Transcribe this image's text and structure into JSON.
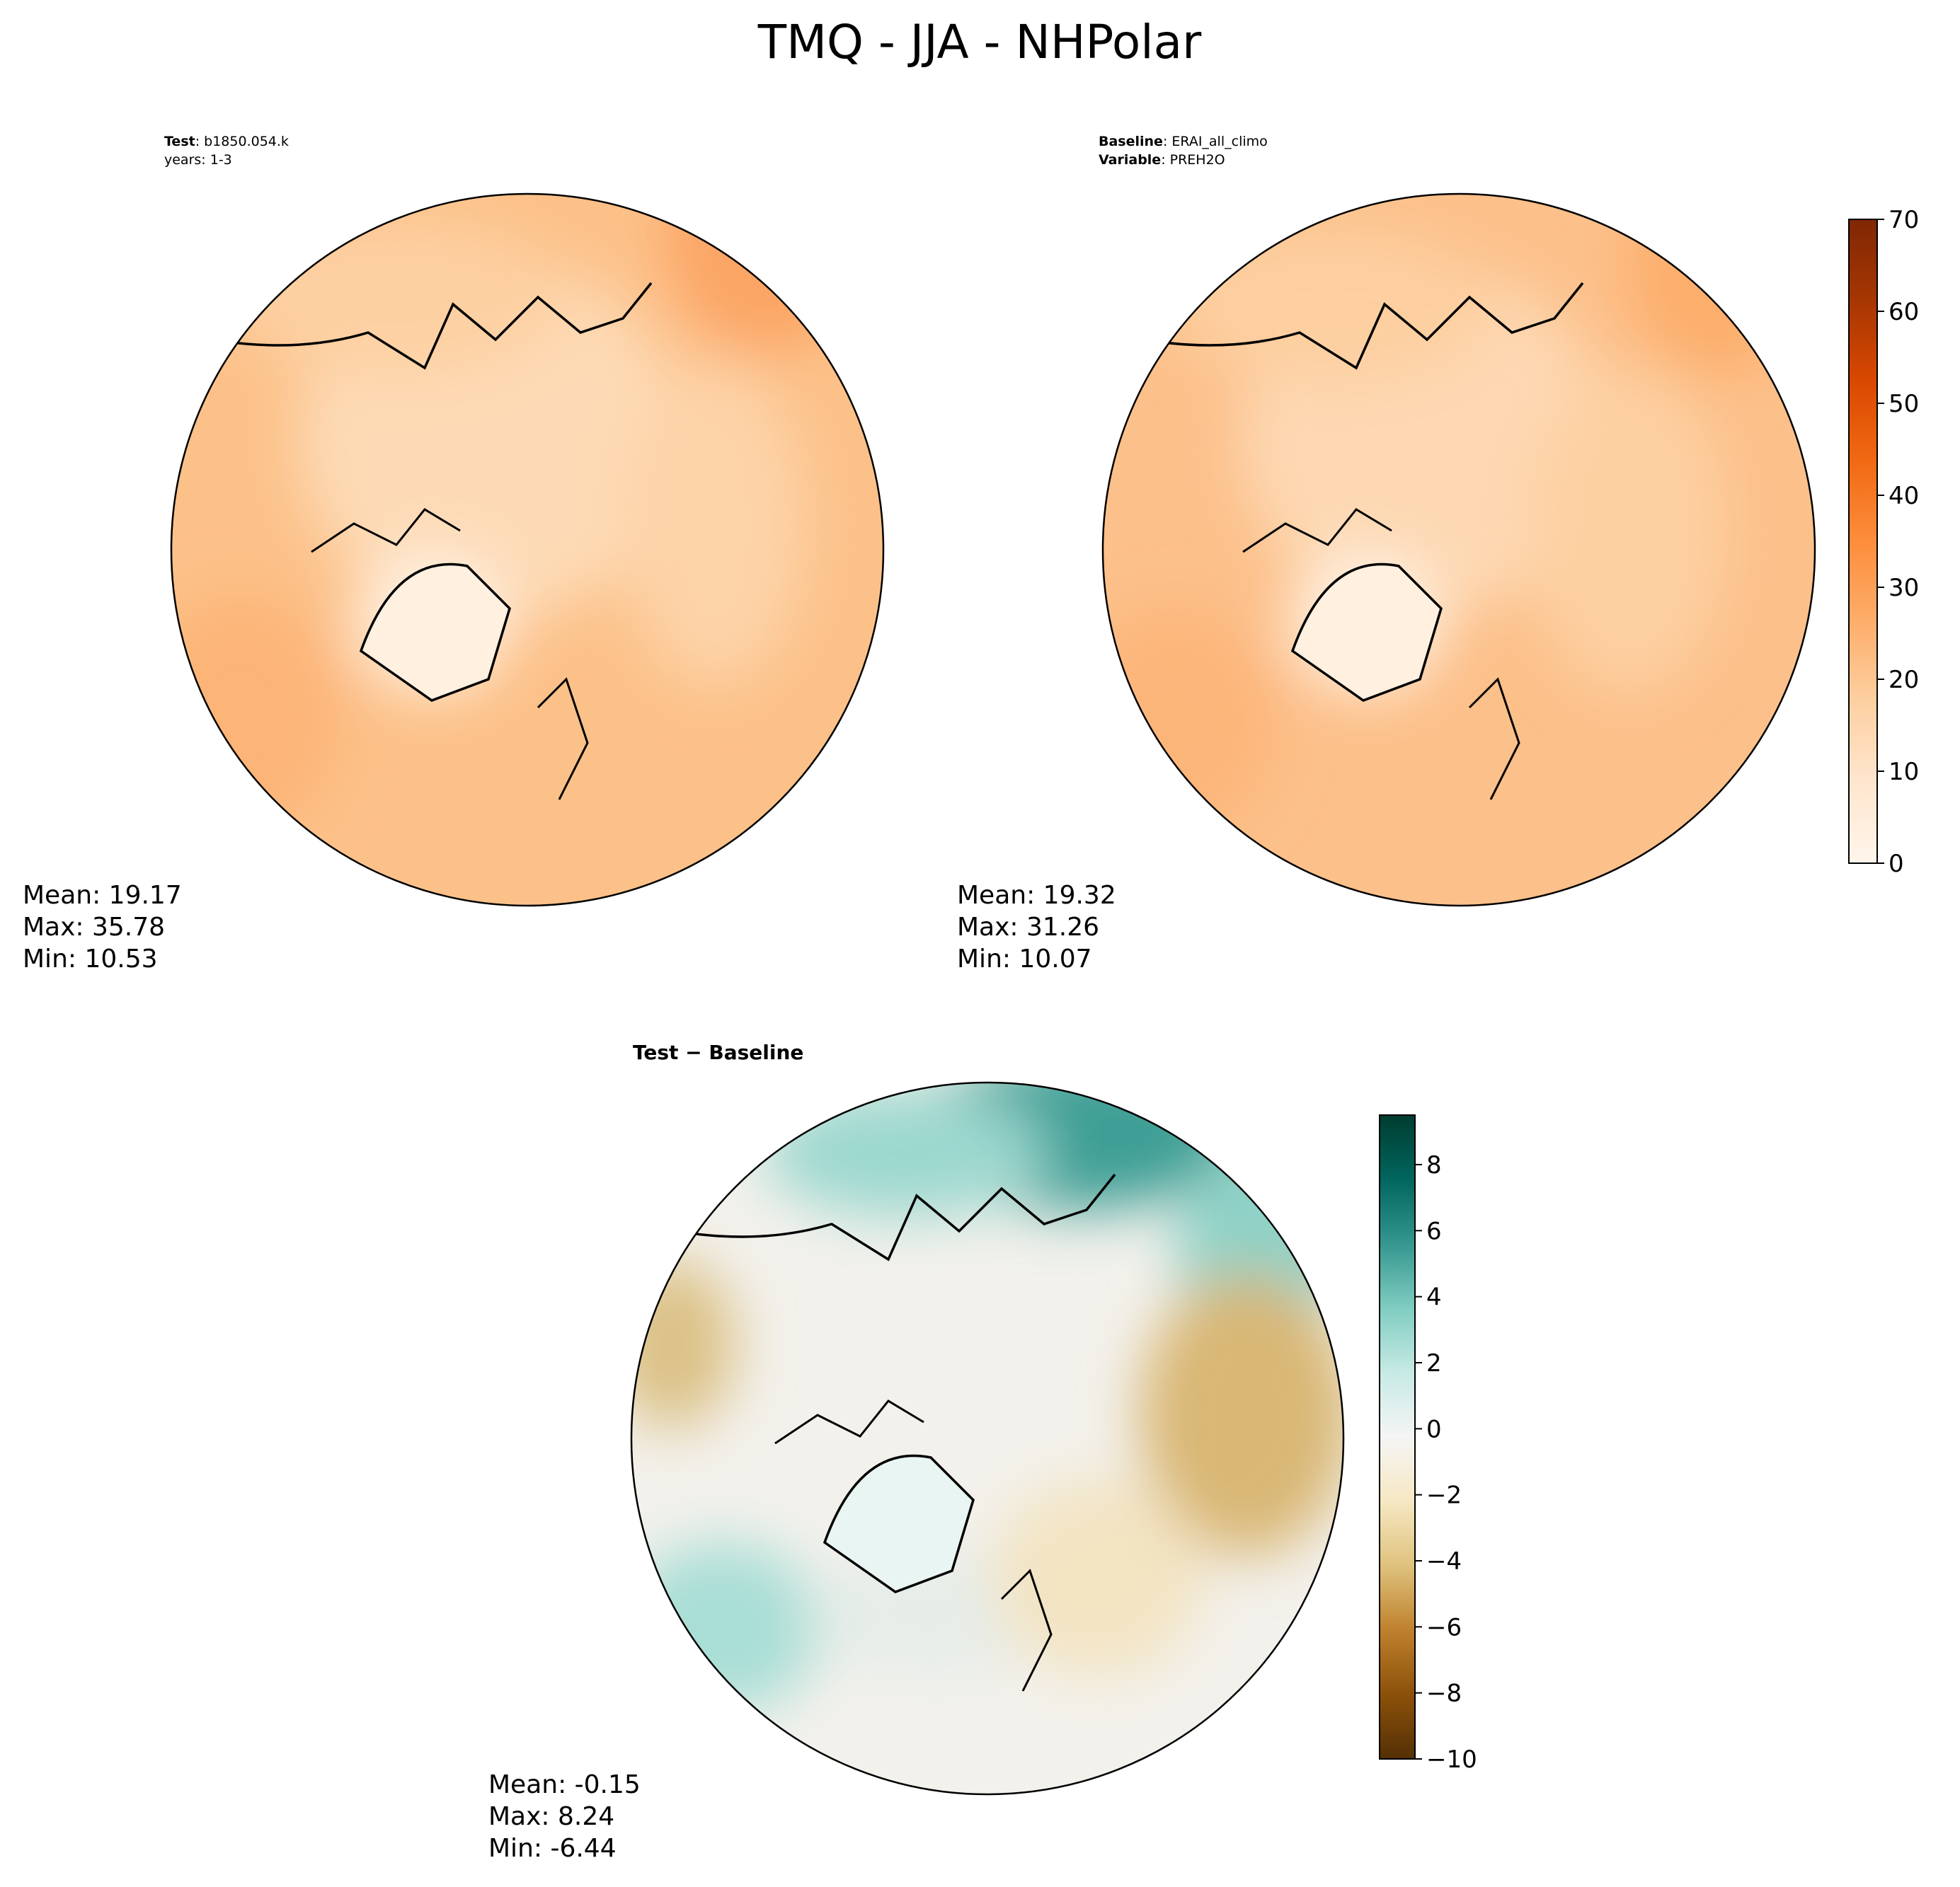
{
  "figure": {
    "title": "TMQ - JJA - NHPolar"
  },
  "panels": {
    "test": {
      "label_key": "Test",
      "label_value": ": b1850.054.k",
      "years": "years: 1-3",
      "stats": {
        "mean": "Mean: 19.17",
        "max": "Max: 35.78",
        "min": "Min: 10.53"
      }
    },
    "baseline": {
      "label_key": "Baseline",
      "label_value": ": ERAI_all_climo",
      "var_key": "Variable",
      "var_value": ": PREH2O",
      "stats": {
        "mean": "Mean: 19.32",
        "max": "Max: 31.26",
        "min": "Min: 10.07"
      }
    },
    "diff": {
      "label_test": "Test",
      "label_minus": " − ",
      "label_base": "Baseline",
      "stats": {
        "mean": "Mean: -0.15",
        "max": "Max:  8.24",
        "min": "Min: -6.44"
      }
    }
  },
  "colorbars": {
    "top": {
      "ticks": [
        "0",
        "10",
        "20",
        "30",
        "40",
        "50",
        "60",
        "70"
      ],
      "range": [
        0,
        70
      ],
      "colors": [
        "#fff5eb",
        "#fee6ce",
        "#fdd0a2",
        "#fdae6b",
        "#fd8d3c",
        "#f16913",
        "#d94801",
        "#a63603",
        "#7f2704"
      ]
    },
    "bottom": {
      "ticks": [
        "−10",
        "−8",
        "−6",
        "−4",
        "−2",
        "0",
        "2",
        "4",
        "6",
        "8"
      ],
      "range": [
        -10,
        9.5
      ],
      "colors": [
        "#543005",
        "#8c510a",
        "#bf812d",
        "#dfc27d",
        "#f6e8c3",
        "#f5f5f5",
        "#c7eae5",
        "#80cdc1",
        "#35978f",
        "#01665e",
        "#003c30"
      ]
    }
  },
  "map_colors": {
    "test_base": "#fcc189",
    "baseline_base": "#fcc08a",
    "diff_base": "#f3f1ec"
  }
}
